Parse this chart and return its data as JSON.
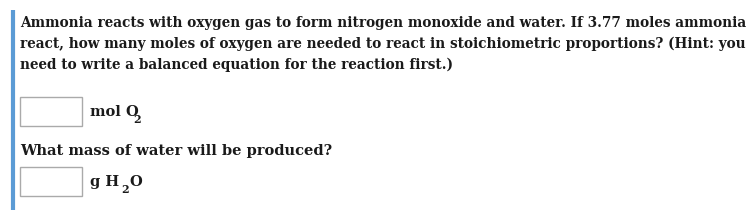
{
  "background_color": "#ffffff",
  "border_color": "#aaaaaa",
  "left_border_color": "#5b9bd5",
  "text_color": "#1a1a1a",
  "paragraph_line1": "Ammonia reacts with oxygen gas to form nitrogen monoxide and water. If 3.77 moles ammonia",
  "paragraph_line2": "react, how many moles of oxygen are needed to react in stoichiometric proportions? (Hint: you",
  "paragraph_line3": "need to write a balanced equation for the reaction first.)",
  "label1_normal": "mol O",
  "label1_sub": "2",
  "label2_normal": "What mass of water will be produced?",
  "label3_g": "g H",
  "label3_sub": "2",
  "label3_end": "O",
  "font_size_para": 9.8,
  "font_size_label": 10.5,
  "font_size_question": 10.5,
  "font_size_sub": 8.0
}
